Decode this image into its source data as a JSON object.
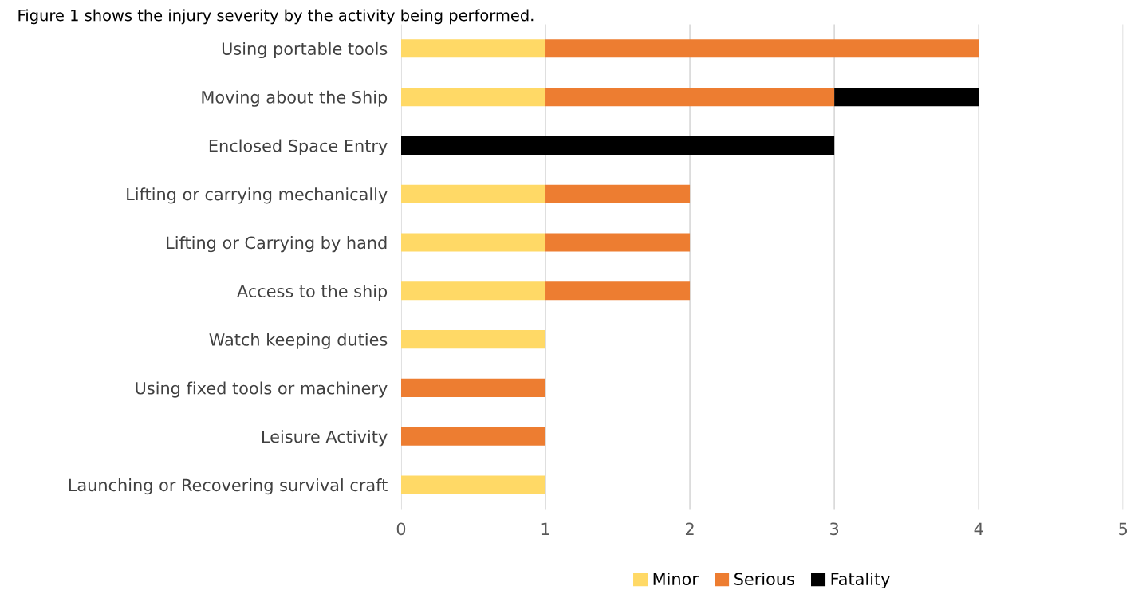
{
  "chart_data": {
    "type": "bar",
    "orientation": "horizontal",
    "stacked": true,
    "title": "Figure 1 shows the injury severity by the activity being performed.",
    "categories": [
      "Using portable tools",
      "Moving about the Ship",
      "Enclosed Space Entry",
      "Lifting or carrying mechanically",
      "Lifting or Carrying by hand",
      "Access to the ship",
      "Watch keeping duties",
      "Using fixed tools or machinery",
      "Leisure Activity",
      "Launching or Recovering survival craft"
    ],
    "series": [
      {
        "name": "Minor",
        "color": "#ffd966",
        "values": [
          1,
          1,
          0,
          1,
          1,
          1,
          1,
          0,
          0,
          1
        ]
      },
      {
        "name": "Serious",
        "color": "#ed7d31",
        "values": [
          3,
          2,
          0,
          1,
          1,
          1,
          0,
          1,
          1,
          0
        ]
      },
      {
        "name": "Fatality",
        "color": "#000000",
        "values": [
          0,
          1,
          3,
          0,
          0,
          0,
          0,
          0,
          0,
          0
        ]
      }
    ],
    "xlim": [
      0,
      5
    ],
    "xticks": [
      0,
      1,
      2,
      3,
      4,
      5
    ],
    "grid": "x",
    "legend": "bottom"
  }
}
